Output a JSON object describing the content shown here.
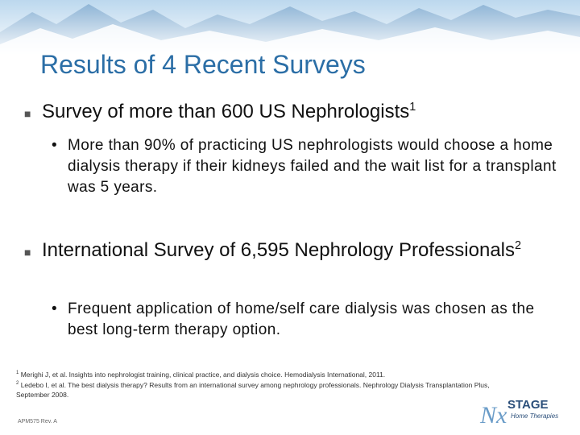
{
  "title": "Results of 4 Recent Surveys",
  "bullets": [
    {
      "text": "Survey of more than 600 US Nephrologists",
      "ref": "1",
      "sub_bullets": [
        "More than 90% of practicing US nephrologists would choose a home dialysis therapy if their kidneys failed and the wait list for a transplant was 5 years."
      ]
    },
    {
      "text": "International Survey of 6,595 Nephrology Professionals",
      "ref": "2",
      "sub_bullets": [
        "Frequent application of home/self care dialysis was chosen as the best long-term therapy option."
      ]
    }
  ],
  "footnotes": [
    {
      "num": "1",
      "text": "Merighi J, et al. Insights into nephrologist training, clinical practice, and dialysis choice. Hemodialysis International, 2011."
    },
    {
      "num": "2",
      "text": "Ledebo I, et al. The best dialysis therapy? Results from an international survey among nephrology professionals. Nephrology Dialysis Transplantation Plus, September 2008."
    }
  ],
  "footer_code": "APM575 Rev. A",
  "logo": {
    "mark": "Nx",
    "name": "STAGE",
    "tagline": "Home Therapies"
  }
}
